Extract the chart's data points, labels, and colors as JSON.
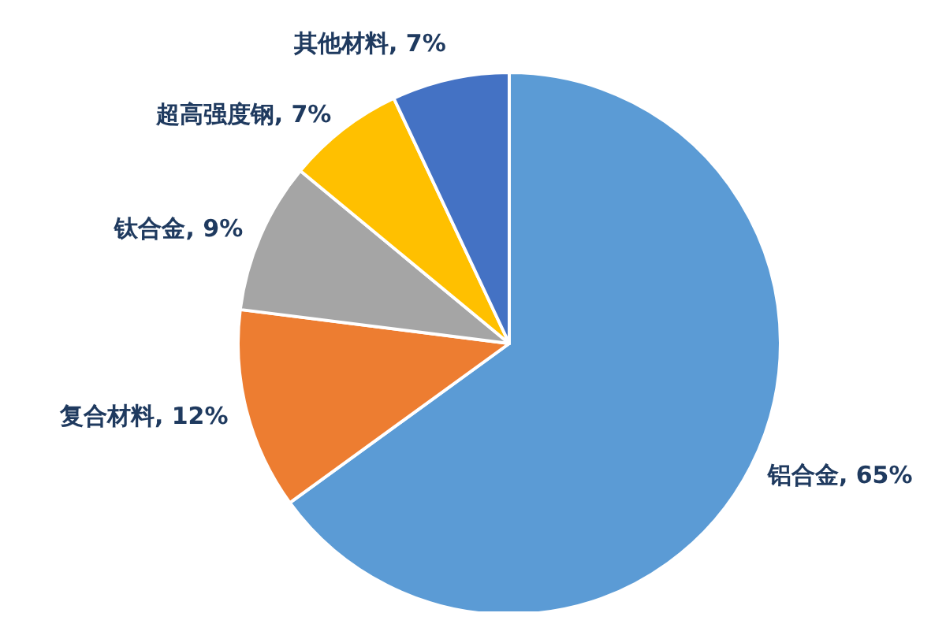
{
  "chart_data": {
    "type": "pie",
    "categories": [
      "铝合金",
      "复合材料",
      "钛合金",
      "超高强度钢",
      "其他材料"
    ],
    "values": [
      65,
      12,
      9,
      7,
      7
    ],
    "value_labels": [
      ", 65%",
      ", 12%",
      ", 9%",
      ", 7%",
      ", 7%"
    ],
    "colors": [
      "#5b9bd5",
      "#ed7d31",
      "#a5a5a5",
      "#ffc000",
      "#4472c4"
    ],
    "legend": false
  }
}
